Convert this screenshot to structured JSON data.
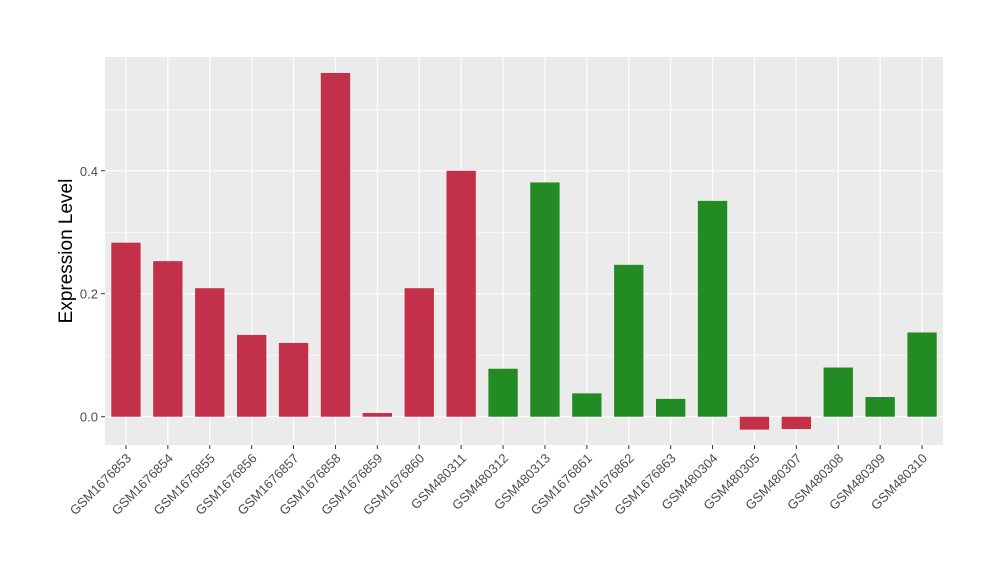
{
  "chart_data": {
    "type": "bar",
    "title": "",
    "xlabel": "",
    "ylabel": "Expression Level",
    "ylim": [
      -0.046,
      0.585
    ],
    "yticks": [
      0.0,
      0.2,
      0.4
    ],
    "ytick_labels": [
      "0.0",
      "0.2",
      "0.4"
    ],
    "grid": true,
    "colors": {
      "red": "#c3304a",
      "green": "#238b23",
      "panel": "#ebebeb",
      "grid": "#ffffff"
    },
    "categories": [
      "GSM1676853",
      "GSM1676854",
      "GSM1676855",
      "GSM1676856",
      "GSM1676857",
      "GSM1676858",
      "GSM1676859",
      "GSM1676860",
      "GSM480311",
      "GSM480312",
      "GSM480313",
      "GSM1676861",
      "GSM1676862",
      "GSM1676863",
      "GSM480304",
      "GSM480305",
      "GSM480307",
      "GSM480308",
      "GSM480309",
      "GSM480310"
    ],
    "values": [
      0.283,
      0.253,
      0.209,
      0.133,
      0.12,
      0.559,
      0.006,
      0.209,
      0.4,
      0.078,
      0.381,
      0.038,
      0.247,
      0.029,
      0.351,
      -0.021,
      -0.02,
      0.08,
      0.032,
      0.137
    ],
    "bar_colors": [
      "red",
      "red",
      "red",
      "red",
      "red",
      "red",
      "red",
      "red",
      "red",
      "green",
      "green",
      "green",
      "green",
      "green",
      "green",
      "red",
      "red",
      "green",
      "green",
      "green"
    ]
  }
}
